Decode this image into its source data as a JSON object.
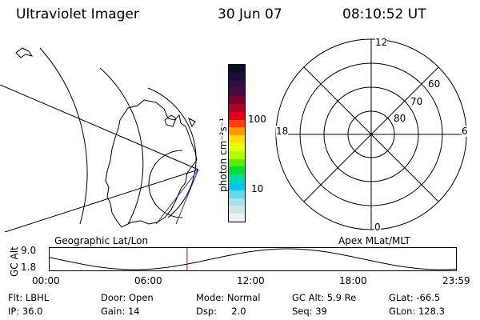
{
  "header": {
    "title": "Ultraviolet Imager",
    "date": "30 Jun 07",
    "time": "08:10:52 UT"
  },
  "colorbar": {
    "label": "photon cm⁻²s⁻¹",
    "ticks": [
      "100",
      "10"
    ],
    "colors": [
      "#0a0a2a",
      "#1a0f3a",
      "#300f48",
      "#4a0a40",
      "#7a0030",
      "#b00028",
      "#e00018",
      "#ff4400",
      "#ff9900",
      "#ffdd00",
      "#e5ff00",
      "#b0ff00",
      "#55ee00",
      "#00dd33",
      "#00d8aa",
      "#00c8e8",
      "#60d8ee",
      "#a8e0e8",
      "#d2e6ea",
      "#eef1f3"
    ]
  },
  "map_left": {
    "caption": "Geographic Lat/Lon"
  },
  "map_right": {
    "caption": "Apex MLat/MLT",
    "mlt_labels": [
      "12",
      "18",
      "6",
      "0"
    ],
    "mlat_labels": [
      "60",
      "70",
      "80"
    ]
  },
  "altitude_plot": {
    "ylabel": "GC Alt",
    "yticks": [
      "9.0",
      "1.8"
    ],
    "xticks": [
      "00:00",
      "06:00",
      "12:00",
      "18:00",
      "23:59"
    ],
    "ymax": 9.0,
    "ymin": 1.8,
    "current_time_fraction": 0.339,
    "marker_color": "#cc0000"
  },
  "info": {
    "flt": "Flt: LBHL",
    "ip": "IP: 36.0",
    "door": "Door: Open",
    "gain": "Gain: 14",
    "mode": "Mode: Normal",
    "dsp": "Dsp:     2.0",
    "gc_alt": "GC Alt: 5.9 Re",
    "seq": "Seq: 39",
    "glat": "GLat: -66.5",
    "glon": "GLon: 128.3"
  }
}
